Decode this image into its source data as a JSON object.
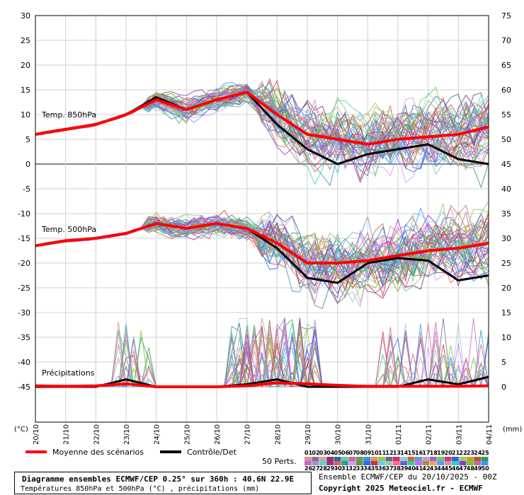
{
  "chart_data": {
    "type": "line",
    "left_axis": {
      "unit": "(°C)",
      "ticks": [
        30,
        25,
        20,
        15,
        10,
        5,
        0,
        -5,
        -10,
        -15,
        -20,
        -25,
        -30,
        -35,
        -40,
        -45
      ]
    },
    "right_axis": {
      "unit": "(mm)",
      "ticks": [
        75,
        70,
        65,
        60,
        55,
        50,
        45,
        40,
        35,
        30,
        25,
        20,
        15,
        10,
        5,
        0
      ]
    },
    "x_dates": [
      "20/10",
      "21/10",
      "22/10",
      "23/10",
      "24/10",
      "25/10",
      "26/10",
      "27/10",
      "28/10",
      "29/10",
      "30/10",
      "31/10",
      "01/11",
      "02/11",
      "03/11",
      "04/11"
    ],
    "panels": [
      {
        "label": "Temp. 850hPa",
        "mean": [
          6,
          7,
          8,
          10,
          13,
          11,
          13,
          14.5,
          10,
          6,
          5,
          4,
          5,
          5.5,
          6,
          7.5
        ],
        "control": [
          6,
          7,
          8,
          10,
          13.5,
          11,
          13,
          14.5,
          8,
          3,
          0,
          2,
          3,
          4,
          1,
          0
        ]
      },
      {
        "label": "Temp. 500hPa",
        "mean": [
          -16.5,
          -15.5,
          -15,
          -14,
          -12,
          -13,
          -12,
          -13,
          -16,
          -20,
          -20,
          -19.5,
          -18.5,
          -17.5,
          -17,
          -16
        ],
        "control": [
          -16.5,
          -15.5,
          -15,
          -14,
          -12,
          -13,
          -12,
          -13,
          -17,
          -23,
          -24,
          -20,
          -19,
          -19.5,
          -23.5,
          -22.5
        ]
      },
      {
        "label": "Précipitations",
        "mean": [
          0.2,
          0.1,
          0.2,
          0.6,
          0,
          0,
          0,
          0.2,
          0.8,
          0.6,
          0.3,
          0.1,
          0.1,
          0.1,
          0.1,
          0.2
        ],
        "control": [
          0,
          0,
          0,
          1.5,
          0,
          0,
          0,
          0.5,
          1.5,
          0,
          0,
          0,
          0,
          1.5,
          0.5,
          2
        ]
      }
    ],
    "legend": [
      {
        "name": "Moyenne des scénarios",
        "color": "#ff0000"
      },
      {
        "name": "Contrôle/Det",
        "color": "#000000"
      }
    ],
    "perturbations": {
      "label": "50 Perts.",
      "row1": [
        "01",
        "02",
        "03",
        "04",
        "05",
        "06",
        "07",
        "08",
        "09",
        "10",
        "11",
        "12",
        "13",
        "14",
        "15",
        "16",
        "17",
        "18",
        "19",
        "20",
        "21",
        "22",
        "23",
        "24",
        "25"
      ],
      "row2": [
        "26",
        "27",
        "28",
        "29",
        "30",
        "31",
        "32",
        "33",
        "34",
        "35",
        "36",
        "37",
        "38",
        "39",
        "40",
        "41",
        "42",
        "43",
        "44",
        "45",
        "46",
        "47",
        "48",
        "49",
        "50"
      ],
      "colors1": [
        "#cc9999",
        "#996699",
        "#ccaa99",
        "#993366",
        "#336699",
        "#66cc99",
        "#cc6699",
        "#669966",
        "#3399cc",
        "#cc9966",
        "#99cc33",
        "#666699",
        "#cc3366",
        "#99cccc",
        "#cc6633",
        "#6699cc",
        "#cc99cc",
        "#9966cc",
        "#66cc66",
        "#cc3399",
        "#3366cc",
        "#99cc66",
        "#cc9933",
        "#996633",
        "#339966"
      ],
      "colors2": [
        "#cc66cc",
        "#9999cc",
        "#66cccc",
        "#993399",
        "#cc6666",
        "#339999",
        "#cc99ff",
        "#669933",
        "#3366ff",
        "#cc3333",
        "#66ccff",
        "#99cc99",
        "#ff6699",
        "#6666cc",
        "#33cc99",
        "#cc66ff",
        "#999933",
        "#ff9966",
        "#6699ff",
        "#cc9999",
        "#33cccc",
        "#9933cc",
        "#66cc33",
        "#cc6699",
        "#3399ff"
      ]
    },
    "mean_color": "#ff0000",
    "control_color": "#000000"
  },
  "footer": {
    "title": "Diagramme ensembles ECMWF/CEP 0.25° sur 360h : 40.6N 22.9E",
    "subtitle": "Températures 850hPa et 500hPa (°C) , précipitations (mm)",
    "run_info": "Ensemble ECMWF/CEP du 20/10/2025 - 00Z",
    "copyright": "Copyright 2025 Meteociel.fr - ECMWF"
  }
}
